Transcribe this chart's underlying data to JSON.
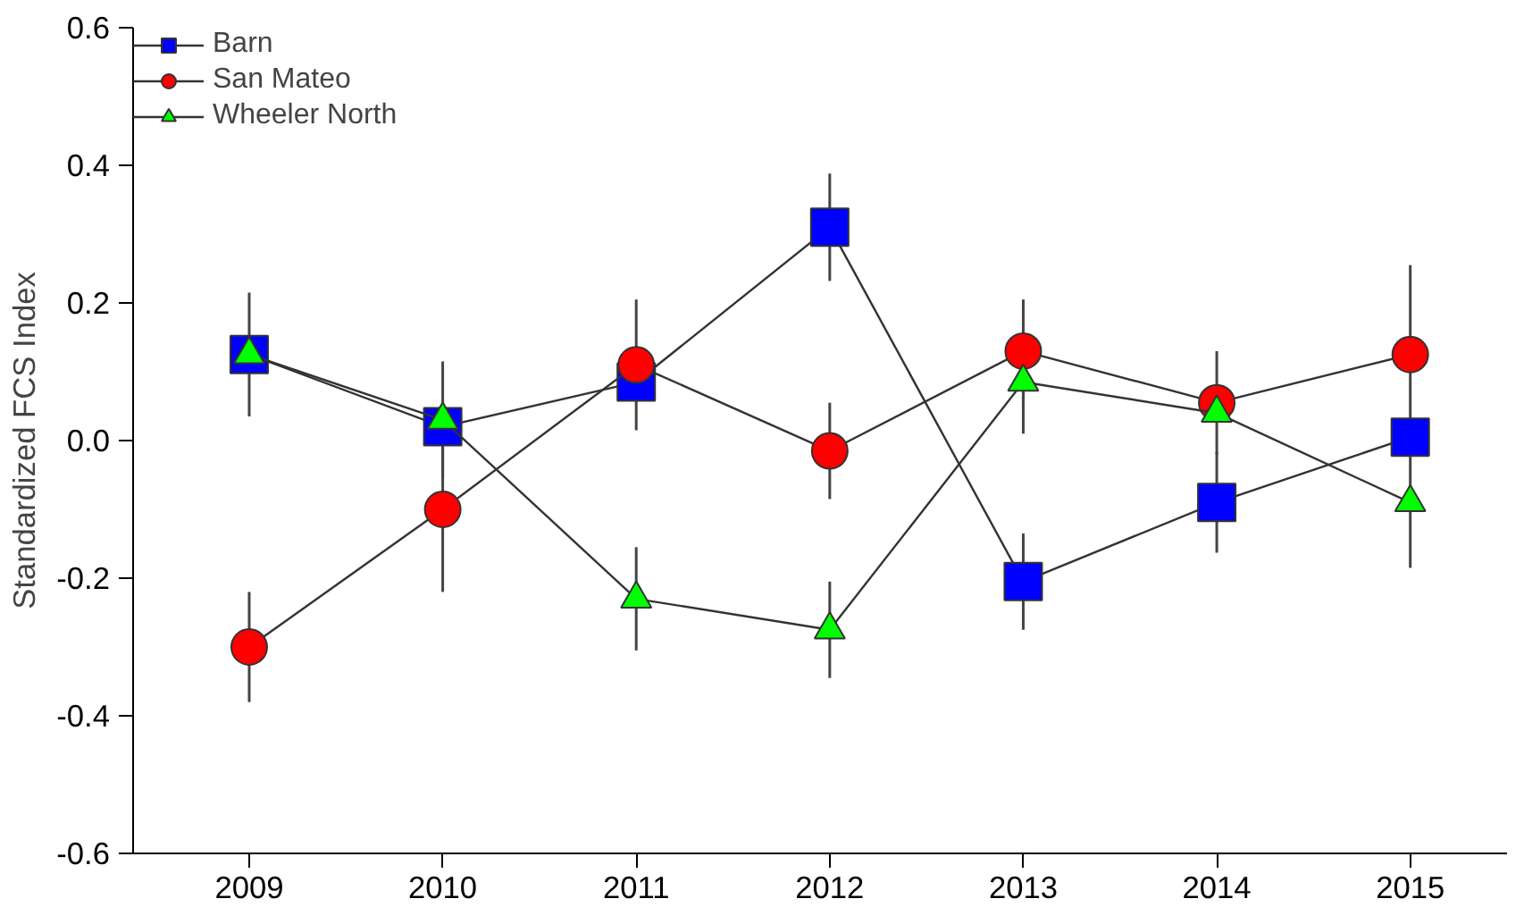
{
  "chart_data": {
    "type": "line",
    "ylabel": "Standardized FCS Index",
    "x": [
      2009,
      2010,
      2011,
      2012,
      2013,
      2014,
      2015
    ],
    "xlim": [
      2008.4,
      2015.5
    ],
    "xticks": [
      2009,
      2010,
      2011,
      2012,
      2013,
      2014,
      2015
    ],
    "ylim": [
      -0.6,
      0.6
    ],
    "yticks": [
      {
        "value": -0.6,
        "label": "-0.6"
      },
      {
        "value": -0.4,
        "label": "-0.4"
      },
      {
        "value": -0.2,
        "label": "-0.2"
      },
      {
        "value": 0,
        "label": "0.0"
      },
      {
        "value": 0.2,
        "label": "0.2"
      },
      {
        "value": 0.4,
        "label": "0.4"
      },
      {
        "value": 0.6,
        "label": "0.6"
      }
    ],
    "grid": false,
    "legend": "top left",
    "line_style": "solid",
    "series": [
      {
        "name": "Barn",
        "color": "#0000ff",
        "marker": "square",
        "values": [
          0.125,
          0.02,
          0.085,
          0.31,
          -0.205,
          -0.09,
          0.005
        ],
        "errors": [
          0.09,
          null,
          null,
          0.078,
          0.07,
          0.073,
          null
        ]
      },
      {
        "name": "San Mateo",
        "color": "#ff0000",
        "marker": "circle",
        "values": [
          -0.3,
          -0.1,
          0.11,
          -0.015,
          0.13,
          0.055,
          0.125
        ],
        "errors": [
          0.08,
          0.12,
          0.095,
          0.07,
          0.075,
          0.075,
          0.13
        ]
      },
      {
        "name": "Wheeler North",
        "color": "#00ff00",
        "marker": "triangle",
        "values": [
          0.125,
          0.03,
          -0.23,
          -0.275,
          0.085,
          0.04,
          -0.09
        ],
        "errors": [
          null,
          0.085,
          0.075,
          0.07,
          0.075,
          null,
          0.095
        ]
      }
    ]
  }
}
